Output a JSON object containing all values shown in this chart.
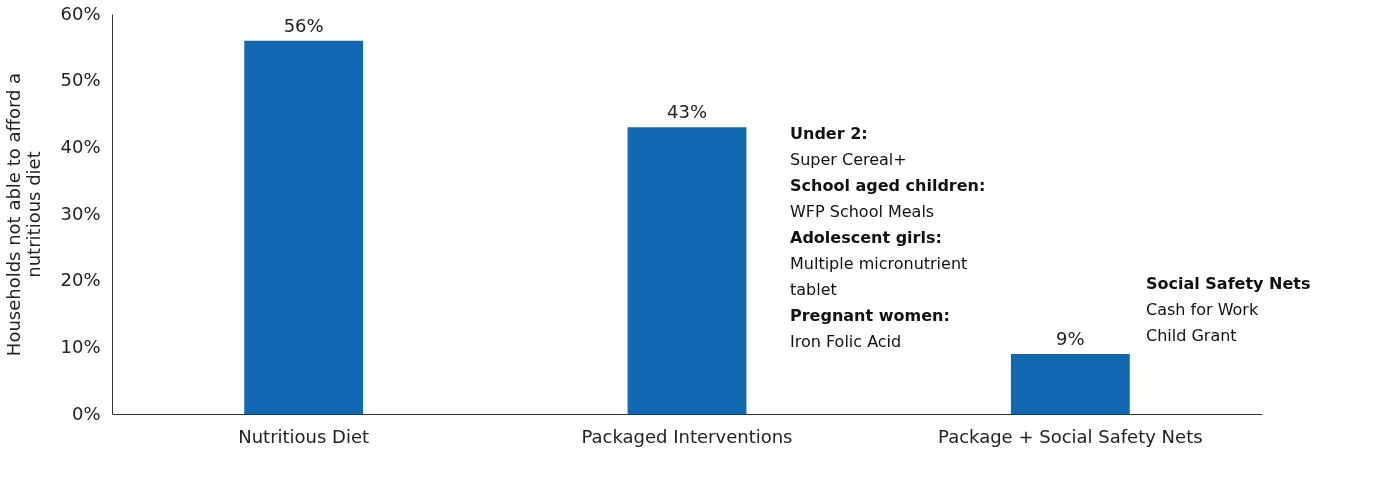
{
  "chart_data": {
    "type": "bar",
    "ylabel": "Households not able to afford a nutritious diet",
    "categories": [
      "Nutritious Diet",
      "Packaged Interventions",
      "Package + Social Safety Nets"
    ],
    "values": [
      56,
      43,
      9
    ],
    "value_labels": [
      "56%",
      "43%",
      "9%"
    ],
    "color": "#1268b0",
    "ylim": [
      0,
      60
    ],
    "yticks": [
      {
        "value": 0,
        "label": "0%"
      },
      {
        "value": 10,
        "label": "10%"
      },
      {
        "value": 20,
        "label": "20%"
      },
      {
        "value": 30,
        "label": "30%"
      },
      {
        "value": 40,
        "label": "40%"
      },
      {
        "value": 50,
        "label": "50%"
      },
      {
        "value": 60,
        "label": "60%"
      }
    ],
    "grid": false,
    "annotations": [
      "Under 2:\nSuper Cereal+",
      "School aged children:\nWFP School Meals",
      "Adolescent girls:\nMultiple micronutrient\ntablet",
      "Pregnant women:\nIron Folic Acid",
      "Social Safety Nets\nCash for Work\nChild Grant"
    ]
  }
}
